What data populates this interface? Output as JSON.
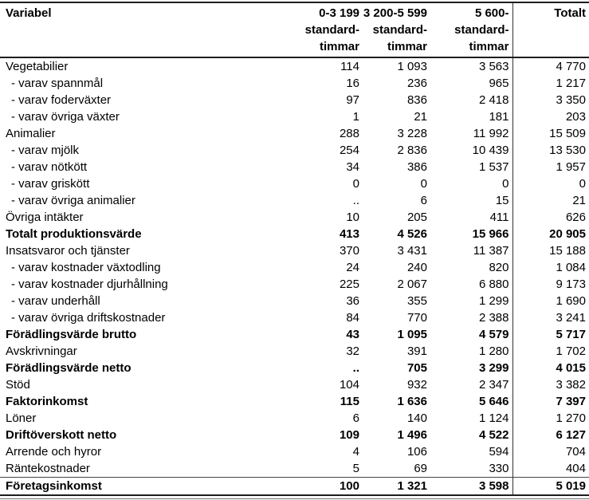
{
  "table": {
    "columns": [
      "Variabel",
      "0-3 199\nstandard-\ntimmar",
      "3 200-5 599\nstandard-\ntimmar",
      "5 600-\nstandard-\ntimmar",
      "Totalt"
    ],
    "rows": [
      {
        "label": "Vegetabilier",
        "values": [
          "114",
          "1 093",
          "3 563",
          "4 770"
        ],
        "style": "normal"
      },
      {
        "label": "- varav spannmål",
        "values": [
          "16",
          "236",
          "965",
          "1 217"
        ],
        "style": "sub"
      },
      {
        "label": "- varav foderväxter",
        "values": [
          "97",
          "836",
          "2 418",
          "3 350"
        ],
        "style": "sub"
      },
      {
        "label": "- varav övriga växter",
        "values": [
          "1",
          "21",
          "181",
          "203"
        ],
        "style": "sub"
      },
      {
        "label": "Animalier",
        "values": [
          "288",
          "3 228",
          "11 992",
          "15 509"
        ],
        "style": "normal"
      },
      {
        "label": "- varav mjölk",
        "values": [
          "254",
          "2 836",
          "10 439",
          "13 530"
        ],
        "style": "sub"
      },
      {
        "label": "- varav nötkött",
        "values": [
          "34",
          "386",
          "1 537",
          "1 957"
        ],
        "style": "sub"
      },
      {
        "label": "- varav griskött",
        "values": [
          "0",
          "0",
          "0",
          "0"
        ],
        "style": "sub"
      },
      {
        "label": "- varav övriga animalier",
        "values": [
          "..",
          "6",
          "15",
          "21"
        ],
        "style": "sub"
      },
      {
        "label": "Övriga intäkter",
        "values": [
          "10",
          "205",
          "411",
          "626"
        ],
        "style": "normal"
      },
      {
        "label": "Totalt produktionsvärde",
        "values": [
          "413",
          "4 526",
          "15 966",
          "20 905"
        ],
        "style": "bold"
      },
      {
        "label": "Insatsvaror och tjänster",
        "values": [
          "370",
          "3 431",
          "11 387",
          "15 188"
        ],
        "style": "normal"
      },
      {
        "label": "- varav kostnader växtodling",
        "values": [
          "24",
          "240",
          "820",
          "1 084"
        ],
        "style": "sub"
      },
      {
        "label": "- varav kostnader djurhållning",
        "values": [
          "225",
          "2 067",
          "6 880",
          "9 173"
        ],
        "style": "sub"
      },
      {
        "label": "- varav underhåll",
        "values": [
          "36",
          "355",
          "1 299",
          "1 690"
        ],
        "style": "sub"
      },
      {
        "label": "- varav övriga driftskostnader",
        "values": [
          "84",
          "770",
          "2 388",
          "3 241"
        ],
        "style": "sub"
      },
      {
        "label": "Förädlingsvärde brutto",
        "values": [
          "43",
          "1 095",
          "4 579",
          "5 717"
        ],
        "style": "bold"
      },
      {
        "label": "Avskrivningar",
        "values": [
          "32",
          "391",
          "1 280",
          "1 702"
        ],
        "style": "normal"
      },
      {
        "label": "Förädlingsvärde netto",
        "values": [
          "..",
          "705",
          "3 299",
          "4 015"
        ],
        "style": "bold"
      },
      {
        "label": "Stöd",
        "values": [
          "104",
          "932",
          "2 347",
          "3 382"
        ],
        "style": "normal"
      },
      {
        "label": "Faktorinkomst",
        "values": [
          "115",
          "1 636",
          "5 646",
          "7 397"
        ],
        "style": "bold"
      },
      {
        "label": "Löner",
        "values": [
          "6",
          "140",
          "1 124",
          "1 270"
        ],
        "style": "normal"
      },
      {
        "label": "Driftöverskott netto",
        "values": [
          "109",
          "1 496",
          "4 522",
          "6 127"
        ],
        "style": "bold"
      },
      {
        "label": "Arrende och hyror",
        "values": [
          "4",
          "106",
          "594",
          "704"
        ],
        "style": "normal"
      },
      {
        "label": "Räntekostnader",
        "values": [
          "5",
          "69",
          "330",
          "404"
        ],
        "style": "normal"
      },
      {
        "label": "Företagsinkomst",
        "values": [
          "100",
          "1 321",
          "3 598",
          "5 019"
        ],
        "style": "bold"
      }
    ]
  }
}
